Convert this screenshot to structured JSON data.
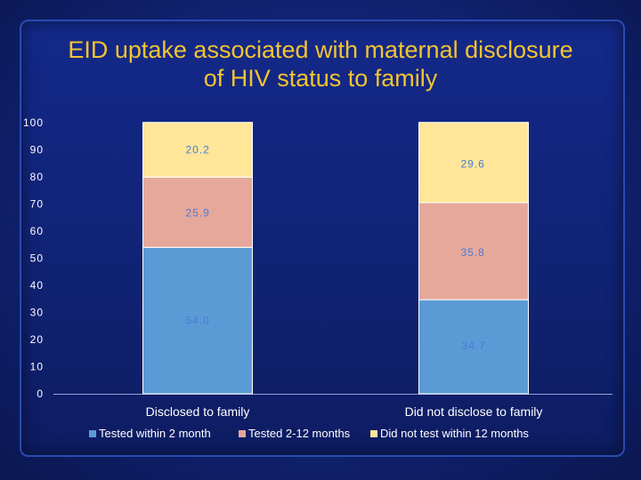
{
  "title": {
    "line1": "EID uptake associated with maternal disclosure",
    "line2": "of HIV status to family"
  },
  "chart_data": {
    "type": "bar",
    "stacked": true,
    "categories": [
      "Disclosed to family",
      "Did not disclose to family"
    ],
    "series": [
      {
        "name": "Tested within 2 month",
        "values": [
          54.0,
          34.7
        ],
        "labels": [
          "54.0",
          "34.7"
        ],
        "color": "#5b9bd5"
      },
      {
        "name": "Tested 2-12 months",
        "values": [
          25.9,
          35.8
        ],
        "labels": [
          "25.9",
          "35.8"
        ],
        "color": "#e6a89a"
      },
      {
        "name": "Did not test within 12 months",
        "values": [
          20.2,
          29.6
        ],
        "labels": [
          "20.2",
          "29.6"
        ],
        "color": "#ffe699"
      }
    ],
    "ylim": [
      0,
      100
    ],
    "yticks": [
      "0",
      "10",
      "20",
      "30",
      "40",
      "50",
      "60",
      "70",
      "80",
      "90",
      "100"
    ],
    "label_color": "#4a7bd8",
    "legend_position": "bottom",
    "grid": false
  }
}
